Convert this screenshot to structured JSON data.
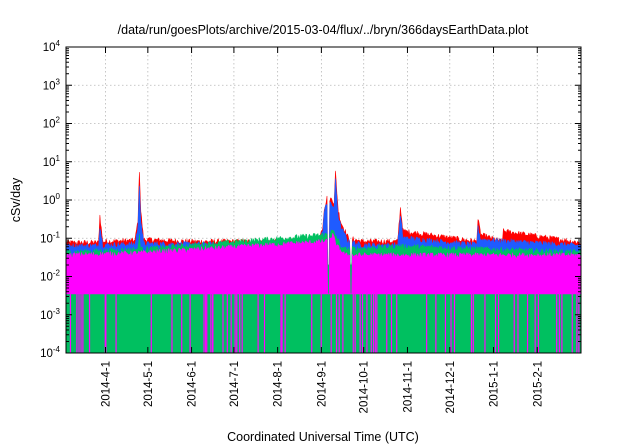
{
  "chart_data": {
    "type": "area",
    "title": "/data/run/goesPlots/archive/2015-03-04/flux/../bryn/366daysEarthData.plot",
    "xlabel": "Coordinated Universal Time (UTC)",
    "ylabel": "cSv/day",
    "yscale": "log",
    "ylim": [
      0.0001,
      10000
    ],
    "xlim": [
      "2014-03-04",
      "2015-03-04"
    ],
    "grid": true,
    "x_ticks": [
      "2014-4-1",
      "2014-5-1",
      "2014-6-1",
      "2014-7-1",
      "2014-8-1",
      "2014-9-1",
      "2014-10-1",
      "2014-11-1",
      "2014-12-1",
      "2015-1-1",
      "2015-2-1"
    ],
    "y_ticks": [
      {
        "base": "10",
        "exp": "-4",
        "value": 0.0001
      },
      {
        "base": "10",
        "exp": "-3",
        "value": 0.001
      },
      {
        "base": "10",
        "exp": "-2",
        "value": 0.01
      },
      {
        "base": "10",
        "exp": "-1",
        "value": 0.1
      },
      {
        "base": "10",
        "exp": "0",
        "value": 1
      },
      {
        "base": "10",
        "exp": "1",
        "value": 10
      },
      {
        "base": "10",
        "exp": "2",
        "value": 100
      },
      {
        "base": "10",
        "exp": "3",
        "value": 1000
      },
      {
        "base": "10",
        "exp": "4",
        "value": 10000
      }
    ],
    "series": [
      {
        "color": "#ff0000",
        "baseline": 0.075,
        "points": [
          [
            "2014-03-04",
            0.075
          ],
          [
            "2014-03-27",
            0.075
          ],
          [
            "2014-03-28",
            0.38
          ],
          [
            "2014-03-30",
            0.08
          ],
          [
            "2014-04-22",
            0.085
          ],
          [
            "2014-04-24",
            0.3
          ],
          [
            "2014-04-25",
            6.0
          ],
          [
            "2014-04-26",
            0.5
          ],
          [
            "2014-04-28",
            0.09
          ],
          [
            "2014-05-31",
            0.08
          ],
          [
            "2014-08-30",
            0.08
          ],
          [
            "2014-09-02",
            0.2
          ],
          [
            "2014-09-03",
            0.6
          ],
          [
            "2014-09-05",
            1.1
          ],
          [
            "2014-09-09",
            1.0
          ],
          [
            "2014-09-10",
            0.8
          ],
          [
            "2014-09-11",
            5.0
          ],
          [
            "2014-09-13",
            0.5
          ],
          [
            "2014-09-15",
            0.25
          ],
          [
            "2014-09-20",
            0.1
          ],
          [
            "2014-09-30",
            0.08
          ],
          [
            "2014-10-25",
            0.08
          ],
          [
            "2014-10-27",
            0.6
          ],
          [
            "2014-10-29",
            0.15
          ],
          [
            "2014-12-20",
            0.08
          ],
          [
            "2014-12-21",
            0.3
          ],
          [
            "2014-12-23",
            0.12
          ],
          [
            "2015-01-07",
            0.08
          ],
          [
            "2015-01-08",
            0.15
          ],
          [
            "2015-03-04",
            0.075
          ]
        ]
      },
      {
        "color": "#1f5bff",
        "baseline": 0.062,
        "points": [
          [
            "2014-03-04",
            0.062
          ],
          [
            "2014-03-27",
            0.062
          ],
          [
            "2014-03-28",
            0.2
          ],
          [
            "2014-03-30",
            0.065
          ],
          [
            "2014-04-22",
            0.068
          ],
          [
            "2014-04-24",
            0.2
          ],
          [
            "2014-04-25",
            2.5
          ],
          [
            "2014-04-26",
            0.3
          ],
          [
            "2014-04-28",
            0.07
          ],
          [
            "2014-08-30",
            0.065
          ],
          [
            "2014-09-02",
            0.15
          ],
          [
            "2014-09-03",
            0.45
          ],
          [
            "2014-09-05",
            0.85
          ],
          [
            "2014-09-09",
            0.7
          ],
          [
            "2014-09-10",
            0.6
          ],
          [
            "2014-09-11",
            3.2
          ],
          [
            "2014-09-13",
            0.35
          ],
          [
            "2014-09-15",
            0.18
          ],
          [
            "2014-09-20",
            0.08
          ],
          [
            "2014-09-30",
            0.065
          ],
          [
            "2014-10-25",
            0.065
          ],
          [
            "2014-10-27",
            0.35
          ],
          [
            "2014-10-29",
            0.1
          ],
          [
            "2014-12-20",
            0.065
          ],
          [
            "2014-12-21",
            0.18
          ],
          [
            "2014-12-23",
            0.09
          ],
          [
            "2015-03-04",
            0.062
          ]
        ]
      },
      {
        "color": "#00c060",
        "baseline": 0.042,
        "points": [
          [
            "2014-03-04",
            0.042
          ],
          [
            "2014-04-24",
            0.05
          ],
          [
            "2014-04-25",
            0.12
          ],
          [
            "2014-04-26",
            0.05
          ],
          [
            "2014-09-04",
            0.12
          ],
          [
            "2014-09-09",
            0.15
          ],
          [
            "2014-09-12",
            0.1
          ],
          [
            "2014-09-16",
            0.05
          ],
          [
            "2014-10-27",
            0.06
          ],
          [
            "2015-03-04",
            0.042
          ]
        ]
      },
      {
        "color": "#ff00ff",
        "baseline": 0.035,
        "floor": 0.0035,
        "points": [
          [
            "2014-03-04",
            0.035
          ],
          [
            "2014-04-25",
            0.04
          ],
          [
            "2014-09-05",
            0.08
          ],
          [
            "2014-09-09",
            0.12
          ],
          [
            "2014-09-12",
            0.06
          ],
          [
            "2014-09-18",
            0.035
          ],
          [
            "2015-03-04",
            0.035
          ]
        ]
      }
    ],
    "dropout_dates": [
      "2014-09-06",
      "2014-09-22"
    ]
  }
}
